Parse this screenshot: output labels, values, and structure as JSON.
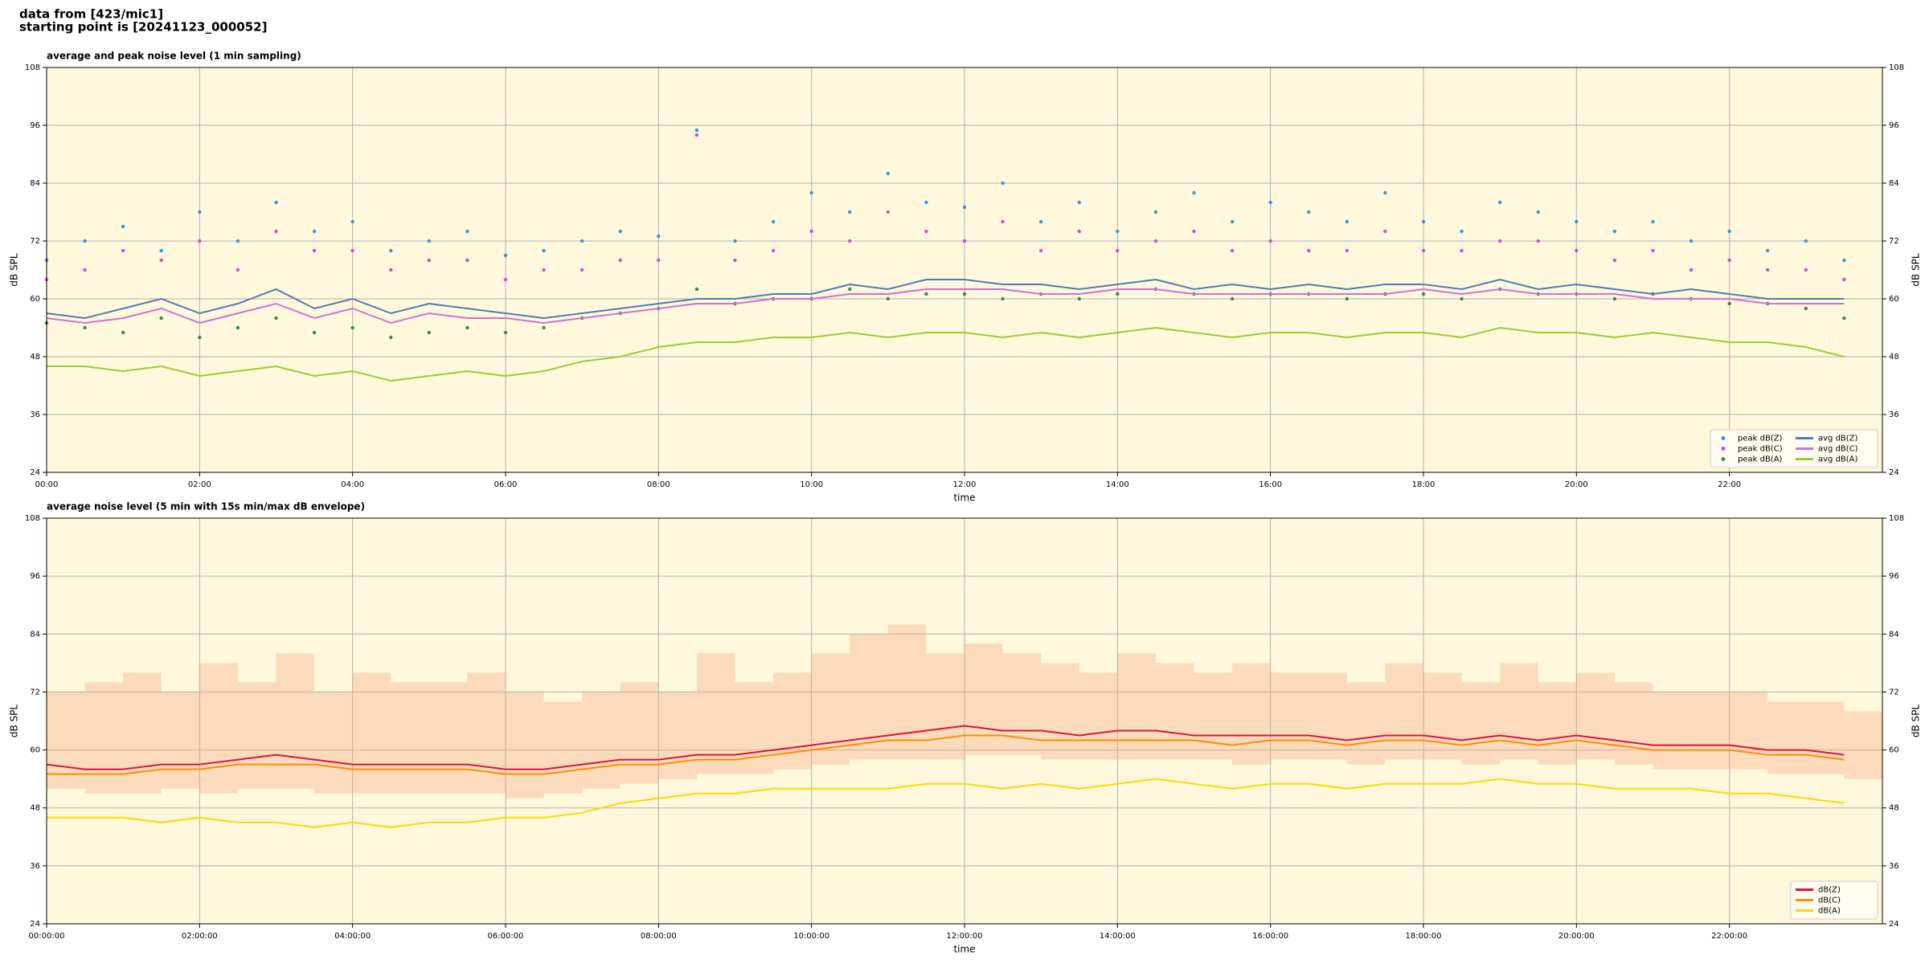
{
  "header": {
    "source": "data from [423/mic1]",
    "start": "starting point is [20241123_000052]"
  },
  "chart_data": [
    {
      "type": "line",
      "title": "average and peak noise level (1 min sampling)",
      "xlabel": "time",
      "ylabel": "dB SPL",
      "xlim": [
        0,
        24
      ],
      "ylim": [
        24,
        108
      ],
      "yticks": [
        24,
        36,
        48,
        60,
        72,
        84,
        96,
        108
      ],
      "xticks": [
        {
          "value": 0,
          "label": "00:00"
        },
        {
          "value": 2,
          "label": "02:00"
        },
        {
          "value": 4,
          "label": "04:00"
        },
        {
          "value": 6,
          "label": "06:00"
        },
        {
          "value": 8,
          "label": "08:00"
        },
        {
          "value": 10,
          "label": "10:00"
        },
        {
          "value": 12,
          "label": "12:00"
        },
        {
          "value": 14,
          "label": "14:00"
        },
        {
          "value": 16,
          "label": "16:00"
        },
        {
          "value": 18,
          "label": "18:00"
        },
        {
          "value": 20,
          "label": "20:00"
        },
        {
          "value": 22,
          "label": "22:00"
        }
      ],
      "grid": true,
      "background": "#fff8dc",
      "legend": "lower right",
      "legend_columns": 2,
      "x": [
        0,
        0.5,
        1,
        1.5,
        2,
        2.5,
        3,
        3.5,
        4,
        4.5,
        5,
        5.5,
        6,
        6.5,
        7,
        7.5,
        8,
        8.5,
        9,
        9.5,
        10,
        10.5,
        11,
        11.5,
        12,
        12.5,
        13,
        13.5,
        14,
        14.5,
        15,
        15.5,
        16,
        16.5,
        17,
        17.5,
        18,
        18.5,
        19,
        19.5,
        20,
        20.5,
        21,
        21.5,
        22,
        22.5,
        23,
        23.5
      ],
      "series": [
        {
          "name": "peak dB(Z)",
          "mode": "markers",
          "color": "#1f9ee8",
          "values": [
            68,
            72,
            75,
            70,
            78,
            72,
            80,
            74,
            76,
            70,
            72,
            74,
            69,
            70,
            72,
            74,
            73,
            95,
            72,
            76,
            82,
            78,
            86,
            80,
            79,
            84,
            76,
            80,
            74,
            78,
            82,
            76,
            80,
            78,
            76,
            82,
            76,
            74,
            80,
            78,
            76,
            74,
            76,
            72,
            74,
            70,
            72,
            68
          ]
        },
        {
          "name": "peak dB(C)",
          "mode": "markers",
          "color": "#e040e0",
          "values": [
            64,
            66,
            70,
            68,
            72,
            66,
            74,
            70,
            70,
            66,
            68,
            68,
            64,
            66,
            66,
            68,
            68,
            94,
            68,
            70,
            74,
            72,
            78,
            74,
            72,
            76,
            70,
            74,
            70,
            72,
            74,
            70,
            72,
            70,
            70,
            74,
            70,
            70,
            72,
            72,
            70,
            68,
            70,
            66,
            68,
            66,
            66,
            64
          ]
        },
        {
          "name": "peak dB(A)",
          "mode": "markers",
          "color": "#2e8b57",
          "values": [
            55,
            54,
            53,
            56,
            52,
            54,
            56,
            53,
            54,
            52,
            53,
            54,
            53,
            54,
            56,
            57,
            58,
            62,
            59,
            60,
            60,
            62,
            60,
            61,
            61,
            60,
            61,
            60,
            61,
            62,
            61,
            60,
            61,
            61,
            60,
            61,
            61,
            60,
            62,
            61,
            61,
            60,
            61,
            60,
            59,
            59,
            58,
            56
          ]
        },
        {
          "name": "avg dB(Z)",
          "mode": "lines",
          "color": "#4a7fb5",
          "values": [
            57,
            56,
            58,
            60,
            57,
            59,
            62,
            58,
            60,
            57,
            59,
            58,
            57,
            56,
            57,
            58,
            59,
            60,
            60,
            61,
            61,
            63,
            62,
            64,
            64,
            63,
            63,
            62,
            63,
            64,
            62,
            63,
            62,
            63,
            62,
            63,
            63,
            62,
            64,
            62,
            63,
            62,
            61,
            62,
            61,
            60,
            60,
            60
          ]
        },
        {
          "name": "avg dB(C)",
          "mode": "lines",
          "color": "#d070d0",
          "values": [
            56,
            55,
            56,
            58,
            55,
            57,
            59,
            56,
            58,
            55,
            57,
            56,
            56,
            55,
            56,
            57,
            58,
            59,
            59,
            60,
            60,
            61,
            61,
            62,
            62,
            62,
            61,
            61,
            62,
            62,
            61,
            61,
            61,
            61,
            61,
            61,
            62,
            61,
            62,
            61,
            61,
            61,
            60,
            60,
            60,
            59,
            59,
            59
          ]
        },
        {
          "name": "avg dB(A)",
          "mode": "lines",
          "color": "#9acd32",
          "values": [
            46,
            46,
            45,
            46,
            44,
            45,
            46,
            44,
            45,
            43,
            44,
            45,
            44,
            45,
            47,
            48,
            50,
            51,
            51,
            52,
            52,
            53,
            52,
            53,
            53,
            52,
            53,
            52,
            53,
            54,
            53,
            52,
            53,
            53,
            52,
            53,
            53,
            52,
            54,
            53,
            53,
            52,
            53,
            52,
            51,
            51,
            50,
            48
          ]
        }
      ]
    },
    {
      "type": "line",
      "title": "average noise level (5 min with 15s min/max dB envelope)",
      "xlabel": "time",
      "ylabel": "dB SPL",
      "xlim": [
        0,
        24
      ],
      "ylim": [
        24,
        108
      ],
      "yticks": [
        24,
        36,
        48,
        60,
        72,
        84,
        96,
        108
      ],
      "xticks": [
        {
          "value": 0,
          "label": "00:00:00"
        },
        {
          "value": 2,
          "label": "02:00:00"
        },
        {
          "value": 4,
          "label": "04:00:00"
        },
        {
          "value": 6,
          "label": "06:00:00"
        },
        {
          "value": 8,
          "label": "08:00:00"
        },
        {
          "value": 10,
          "label": "10:00:00"
        },
        {
          "value": 12,
          "label": "12:00:00"
        },
        {
          "value": 14,
          "label": "14:00:00"
        },
        {
          "value": 16,
          "label": "16:00:00"
        },
        {
          "value": 18,
          "label": "18:00:00"
        },
        {
          "value": 20,
          "label": "20:00:00"
        },
        {
          "value": 22,
          "label": "22:00:00"
        }
      ],
      "grid": true,
      "background": "#fff8dc",
      "legend": "lower right",
      "legend_columns": 1,
      "x": [
        0,
        0.5,
        1,
        1.5,
        2,
        2.5,
        3,
        3.5,
        4,
        4.5,
        5,
        5.5,
        6,
        6.5,
        7,
        7.5,
        8,
        8.5,
        9,
        9.5,
        10,
        10.5,
        11,
        11.5,
        12,
        12.5,
        13,
        13.5,
        14,
        14.5,
        15,
        15.5,
        16,
        16.5,
        17,
        17.5,
        18,
        18.5,
        19,
        19.5,
        20,
        20.5,
        21,
        21.5,
        22,
        22.5,
        23,
        23.5
      ],
      "envelope": {
        "color": "#f4a582",
        "upper": [
          72,
          74,
          76,
          72,
          78,
          74,
          80,
          72,
          76,
          74,
          74,
          76,
          72,
          70,
          72,
          74,
          72,
          80,
          74,
          76,
          80,
          84,
          86,
          80,
          82,
          80,
          78,
          76,
          80,
          78,
          76,
          78,
          76,
          76,
          74,
          78,
          76,
          74,
          78,
          74,
          76,
          74,
          72,
          72,
          72,
          70,
          70,
          68
        ],
        "lower": [
          52,
          51,
          51,
          52,
          51,
          52,
          52,
          51,
          51,
          51,
          51,
          51,
          50,
          51,
          52,
          53,
          54,
          55,
          55,
          56,
          57,
          58,
          58,
          58,
          59,
          59,
          58,
          58,
          58,
          58,
          58,
          57,
          58,
          58,
          57,
          58,
          58,
          57,
          58,
          57,
          58,
          57,
          56,
          56,
          56,
          55,
          55,
          54
        ]
      },
      "series": [
        {
          "name": "dB(Z)",
          "mode": "lines",
          "color": "#dc143c",
          "values": [
            57,
            56,
            56,
            57,
            57,
            58,
            59,
            58,
            57,
            57,
            57,
            57,
            56,
            56,
            57,
            58,
            58,
            59,
            59,
            60,
            61,
            62,
            63,
            64,
            65,
            64,
            64,
            63,
            64,
            64,
            63,
            63,
            63,
            63,
            62,
            63,
            63,
            62,
            63,
            62,
            63,
            62,
            61,
            61,
            61,
            60,
            60,
            59
          ]
        },
        {
          "name": "dB(C)",
          "mode": "lines",
          "color": "#ff8c00",
          "values": [
            55,
            55,
            55,
            56,
            56,
            57,
            57,
            57,
            56,
            56,
            56,
            56,
            55,
            55,
            56,
            57,
            57,
            58,
            58,
            59,
            60,
            61,
            62,
            62,
            63,
            63,
            62,
            62,
            62,
            62,
            62,
            61,
            62,
            62,
            61,
            62,
            62,
            61,
            62,
            61,
            62,
            61,
            60,
            60,
            60,
            59,
            59,
            58
          ]
        },
        {
          "name": "dB(A)",
          "mode": "lines",
          "color": "#ffd700",
          "values": [
            46,
            46,
            46,
            45,
            46,
            45,
            45,
            44,
            45,
            44,
            45,
            45,
            46,
            46,
            47,
            49,
            50,
            51,
            51,
            52,
            52,
            52,
            52,
            53,
            53,
            52,
            53,
            52,
            53,
            54,
            53,
            52,
            53,
            53,
            52,
            53,
            53,
            53,
            54,
            53,
            53,
            52,
            52,
            52,
            51,
            51,
            50,
            49
          ]
        }
      ]
    }
  ]
}
